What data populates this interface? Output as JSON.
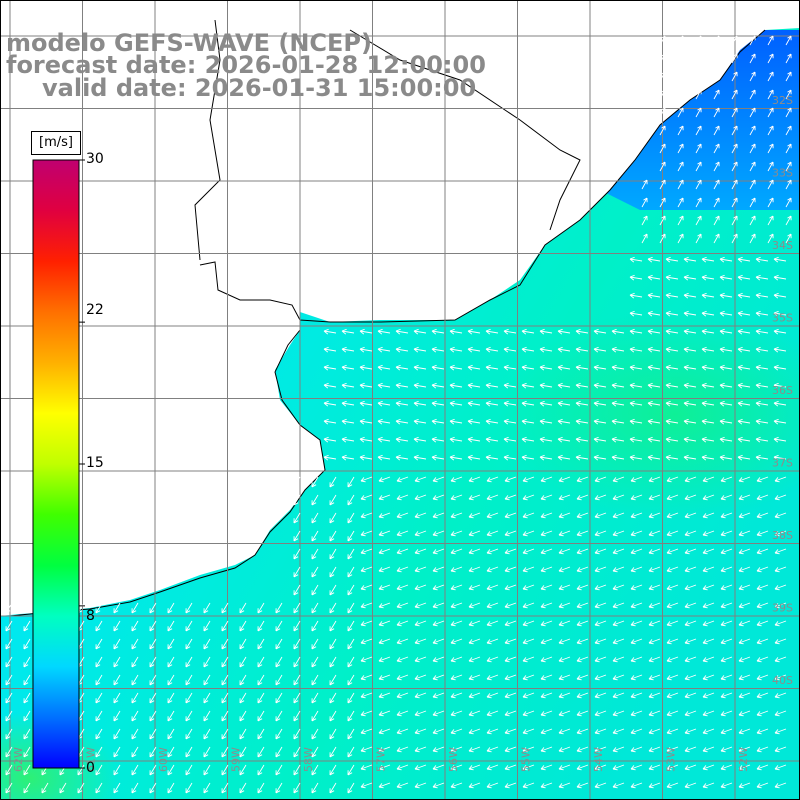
{
  "title": {
    "line1": "modelo GEFS-WAVE (NCEP)",
    "line2": "forecast date: 2026-01-28 12:00:00",
    "line3": "valid date: 2026-01-31 15:00:00"
  },
  "colorbar": {
    "unit": "[m/s]",
    "min": 0,
    "max": 30,
    "ticks": [
      "30",
      "22",
      "15",
      "8",
      "0"
    ],
    "tick_values": [
      30,
      22,
      15,
      8,
      0
    ],
    "colors": [
      "#0000ff",
      "#0070ff",
      "#00d8ff",
      "#00ffc0",
      "#00ff40",
      "#40ff00",
      "#c0ff00",
      "#ffff00",
      "#ffb000",
      "#ff7000",
      "#ff2000",
      "#e00040",
      "#c00070"
    ]
  },
  "map": {
    "lat_labels": [
      "32S",
      "33S",
      "34S",
      "35S",
      "36S",
      "37S",
      "38S",
      "39S",
      "40S"
    ],
    "lon_labels": [
      "62W",
      "61W",
      "60W",
      "59W",
      "58W",
      "57W",
      "56W",
      "55W",
      "54W",
      "53W",
      "52W"
    ],
    "land_color": "#ffffff",
    "grid_color": "#808080",
    "coast_color": "#000000",
    "arrow_color": "#ffffff"
  }
}
